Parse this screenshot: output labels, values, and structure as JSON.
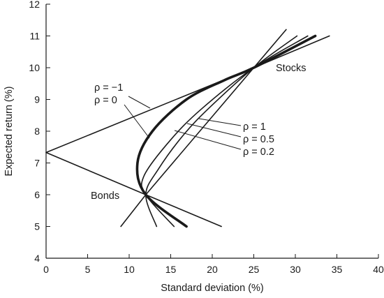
{
  "chart_data": {
    "type": "line",
    "title": "",
    "xlabel": "Standard deviation (%)",
    "ylabel": "Expected return (%)",
    "xlim": [
      0,
      40
    ],
    "ylim": [
      4,
      12
    ],
    "xticks": [
      0,
      5,
      10,
      15,
      20,
      25,
      30,
      35,
      40
    ],
    "yticks": [
      4,
      5,
      6,
      7,
      8,
      9,
      10,
      11,
      12
    ],
    "grid": false,
    "legend": "none",
    "assets": {
      "bonds": {
        "label": "Bonds",
        "expected_return": 6,
        "std_dev": 12
      },
      "stocks": {
        "label": "Stocks",
        "expected_return": 10,
        "std_dev": 25
      }
    },
    "series": [
      {
        "name": "ρ = −1",
        "rho": -1,
        "color": "#1a1a1a",
        "x": [
          21.1,
          12,
          0,
          25,
          34.1
        ],
        "y": [
          5,
          6,
          7.33,
          10,
          11
        ]
      },
      {
        "name": "ρ = 0",
        "rho": 0,
        "color": "#d6457d",
        "x": [
          16.9,
          12,
          11.0,
          12.8,
          16.9,
          21.4,
          25,
          32.4
        ],
        "y": [
          5,
          6,
          7,
          8,
          9,
          9.6,
          10,
          11
        ]
      },
      {
        "name": "ρ = 0.2",
        "rho": 0.2,
        "color": "#1a1a1a",
        "x": [
          15.4,
          12,
          11.8,
          14.9,
          18.7,
          25,
          31.5
        ],
        "y": [
          5,
          6,
          6.6,
          7.7,
          8.7,
          10,
          11
        ]
      },
      {
        "name": "ρ = 0.5",
        "rho": 0.5,
        "color": "#1a1a1a",
        "x": [
          13.3,
          12,
          13.5,
          16.6,
          19.9,
          25,
          30.2
        ],
        "y": [
          5,
          6,
          6.8,
          7.9,
          8.8,
          10,
          11
        ]
      },
      {
        "name": "ρ = 1",
        "rho": 1,
        "color": "#1a1a1a",
        "x": [
          9,
          12,
          25,
          28.9
        ],
        "y": [
          5,
          6,
          10,
          11.2
        ]
      }
    ],
    "annotations": {
      "bonds": "Bonds",
      "stocks": "Stocks",
      "rho_m1": "ρ = −1",
      "rho_0": "ρ = 0",
      "rho_1": "ρ = 1",
      "rho_05": "ρ = 0.5",
      "rho_02": "ρ = 0.2"
    }
  }
}
